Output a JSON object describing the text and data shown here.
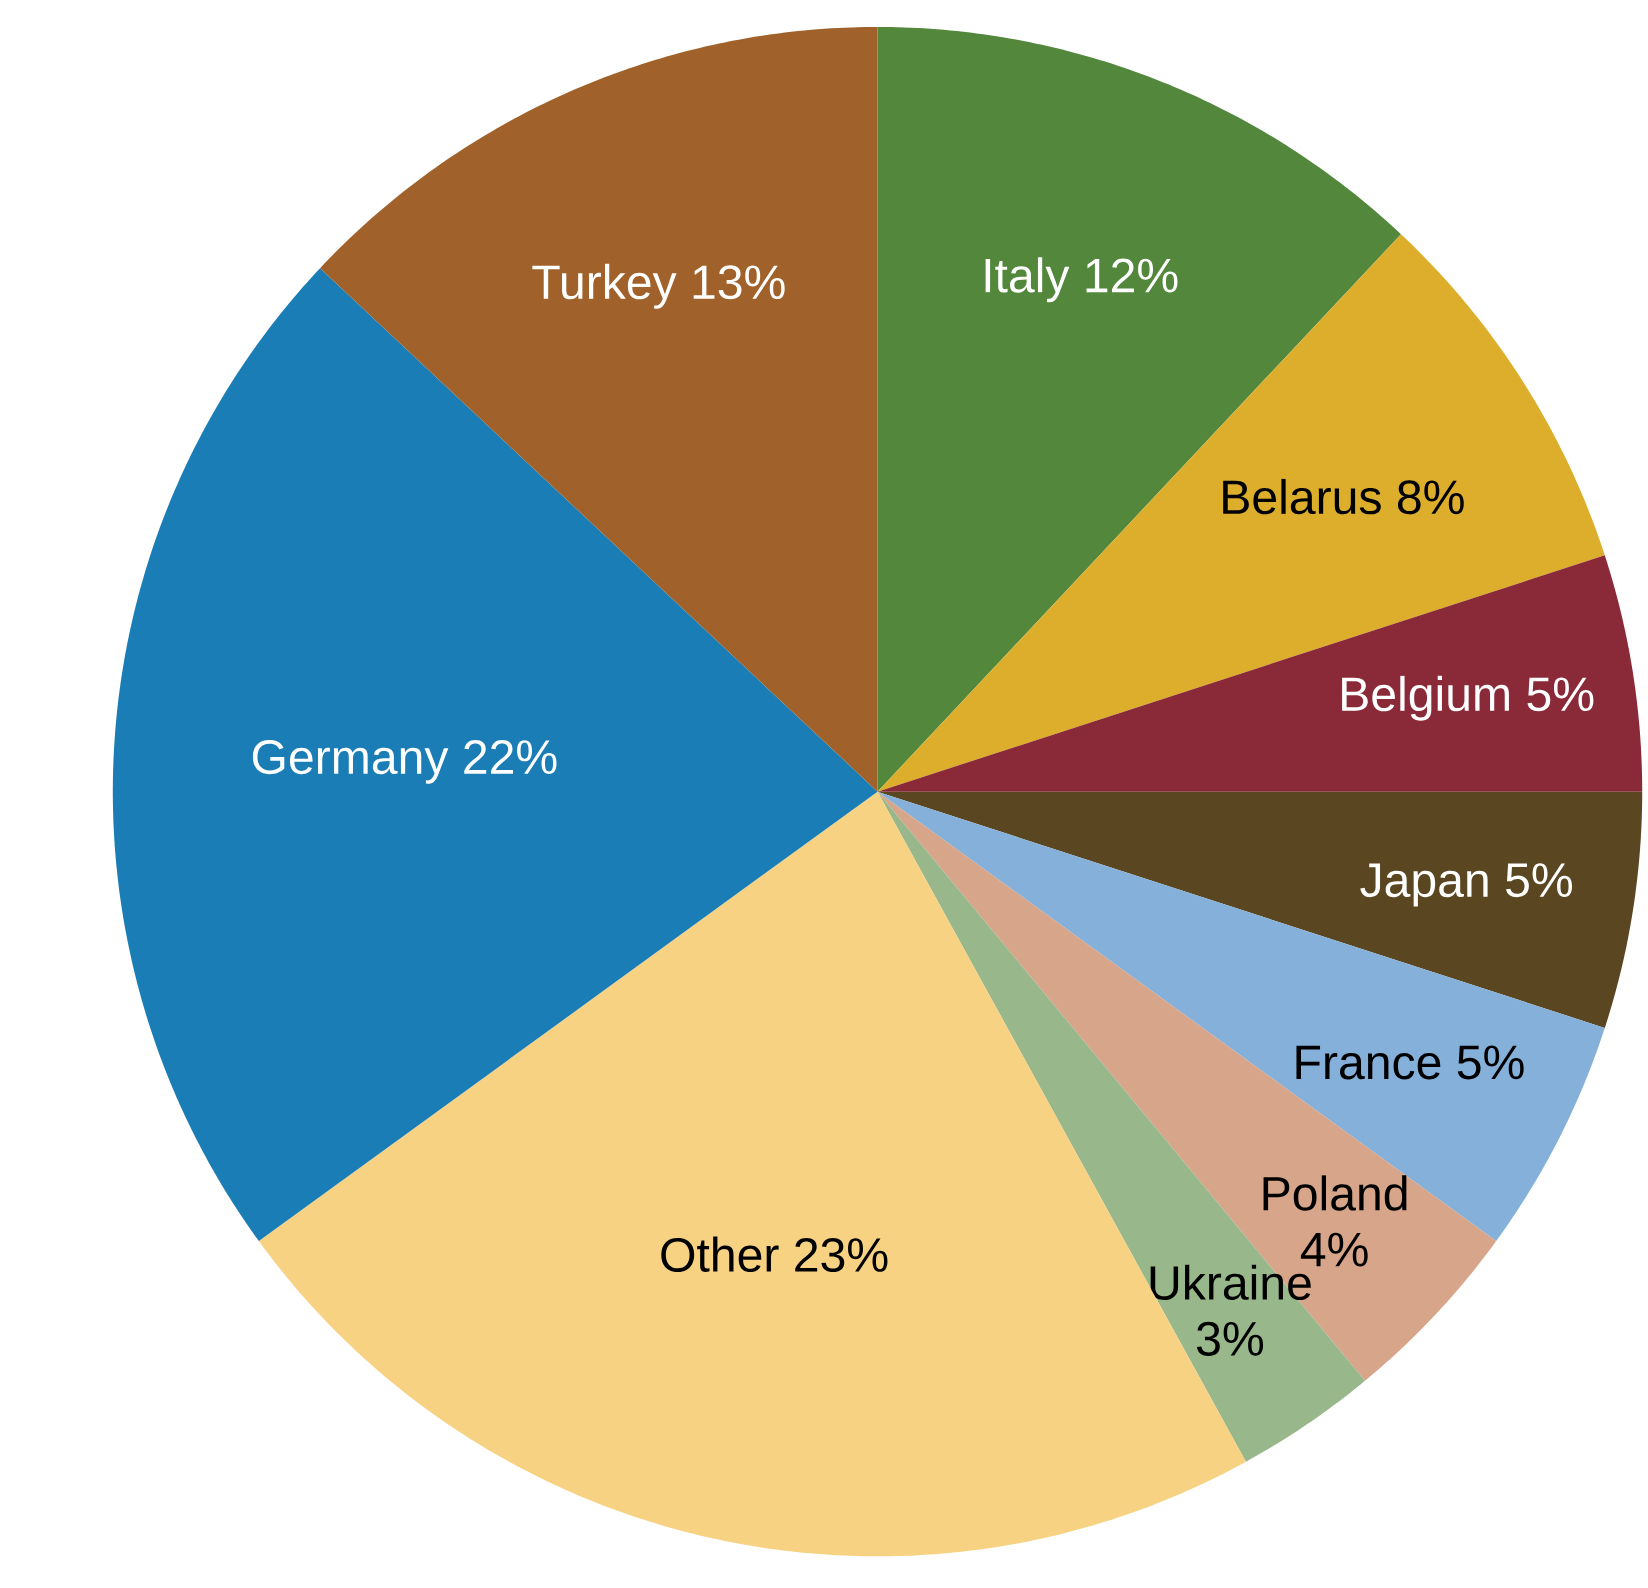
{
  "chart_data": {
    "type": "pie",
    "categories": [
      "Italy",
      "Belarus",
      "Belgium",
      "Japan",
      "France",
      "Poland",
      "Ukraine",
      "Other",
      "Germany",
      "Turkey"
    ],
    "values": [
      12,
      8,
      5,
      5,
      5,
      4,
      3,
      23,
      22,
      13
    ],
    "value_labels": [
      "12%",
      "8%",
      "5%",
      "5%",
      "5%",
      "4%",
      "3%",
      "23%",
      "22%",
      "13%"
    ],
    "colors": [
      "#52873c",
      "#dcae2c",
      "#8a2a38",
      "#5a4620",
      "#84b0da",
      "#d6a58a",
      "#98b78a",
      "#f8d283",
      "#1a7db5",
      "#a0622a"
    ]
  }
}
